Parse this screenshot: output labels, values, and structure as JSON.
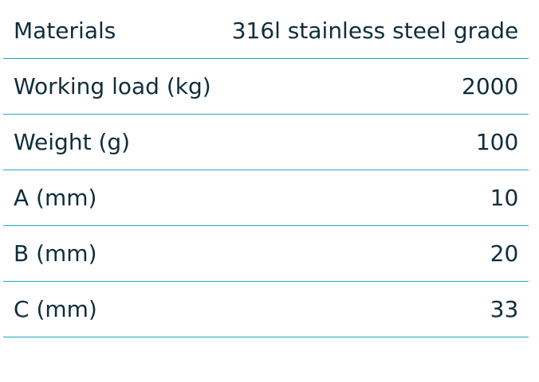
{
  "table": {
    "rows": [
      [
        "Materials",
        "316l stainless steel grade"
      ],
      [
        "Working load (kg)",
        "2000"
      ],
      [
        "Weight (g)",
        "100"
      ],
      [
        "A (mm)",
        "10"
      ],
      [
        "B (mm)",
        "20"
      ],
      [
        "C (mm)",
        "33"
      ]
    ]
  }
}
